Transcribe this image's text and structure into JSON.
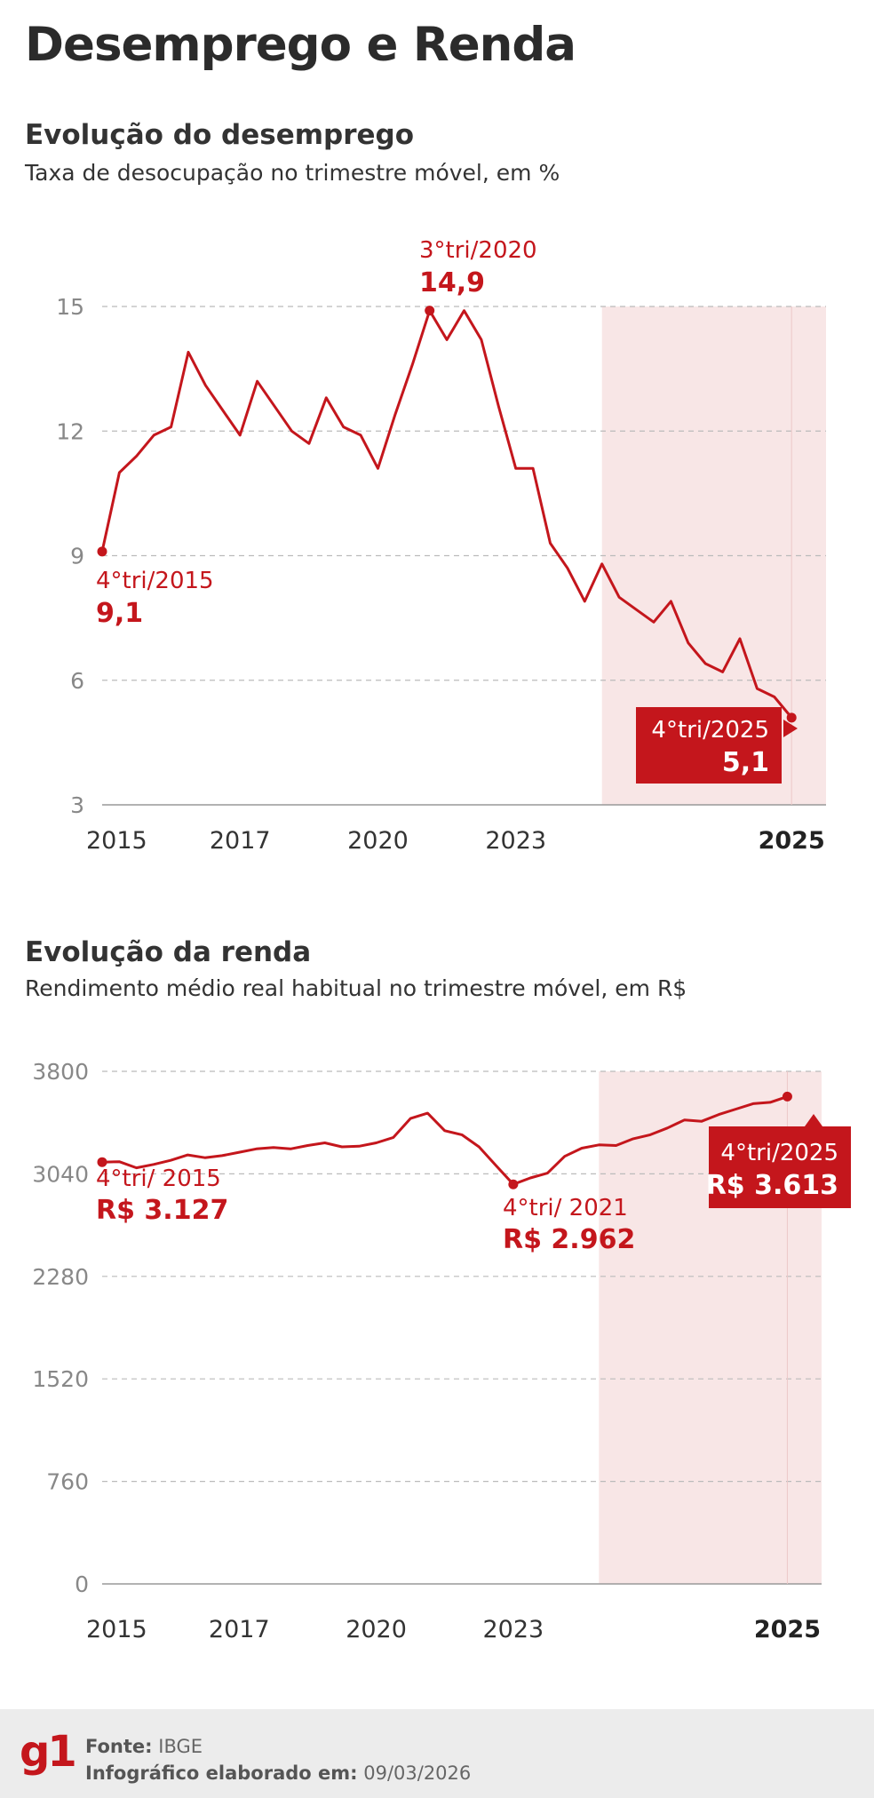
{
  "title": "Desemprego e Renda",
  "colors": {
    "accent": "#c4161c",
    "highlight": "#f8e6e6",
    "grid": "#bbbbbb",
    "axis": "#999999"
  },
  "chart_data": [
    {
      "type": "line",
      "title": "Evolução do desemprego",
      "subtitle": "Taxa de desocupação no trimestre móvel, em %",
      "xlabel": "",
      "ylabel": "",
      "x_ticks": [
        {
          "label": "2015",
          "value": 2015.0,
          "bold": false
        },
        {
          "label": "2017",
          "value": 2017.0,
          "bold": false
        },
        {
          "label": "2020",
          "value": 2019.0,
          "bold": false
        },
        {
          "label": "2023",
          "value": 2021.0,
          "bold": false
        },
        {
          "label": "2025",
          "value": 2025.0,
          "bold": true
        }
      ],
      "xlim": [
        2015.0,
        2025.5
      ],
      "ylim": [
        3,
        15
      ],
      "y_ticks": [
        3,
        6,
        9,
        12,
        15
      ],
      "grid": true,
      "highlight_range": [
        2022.25,
        2025.5
      ],
      "series": [
        {
          "name": "Taxa de desocupação",
          "x": [
            2015.0,
            2015.25,
            2015.5,
            2015.75,
            2016.0,
            2016.25,
            2016.5,
            2016.75,
            2017.0,
            2017.25,
            2017.5,
            2017.75,
            2018.0,
            2018.25,
            2018.5,
            2018.75,
            2019.0,
            2019.25,
            2019.5,
            2019.75,
            2020.0,
            2020.25,
            2020.5,
            2020.75,
            2021.0,
            2021.25,
            2021.5,
            2021.75,
            2022.0,
            2022.25,
            2022.5,
            2022.75,
            2023.0,
            2023.25,
            2023.5,
            2023.75,
            2024.0,
            2024.25,
            2024.5,
            2024.75,
            2025.0
          ],
          "values": [
            9.1,
            11.0,
            11.4,
            11.9,
            12.1,
            13.9,
            13.1,
            12.5,
            11.9,
            13.2,
            12.6,
            12.0,
            11.7,
            12.8,
            12.1,
            11.9,
            11.1,
            12.4,
            13.6,
            14.9,
            14.2,
            14.9,
            14.2,
            12.6,
            11.1,
            11.1,
            9.3,
            8.7,
            7.9,
            8.8,
            8.0,
            7.7,
            7.4,
            7.9,
            6.9,
            6.4,
            6.2,
            7.0,
            5.8,
            5.6,
            5.1
          ]
        }
      ],
      "annotations": [
        {
          "label": "4°tri/2015",
          "value_label": "9,1",
          "x": 2015.0,
          "y": 9.1,
          "style": "text"
        },
        {
          "label": "3°tri/2020",
          "value_label": "14,9",
          "x": 2019.75,
          "y": 14.9,
          "style": "text"
        },
        {
          "label": "4°tri/2025",
          "value_label": "5,1",
          "x": 2025.0,
          "y": 5.1,
          "style": "box"
        }
      ]
    },
    {
      "type": "line",
      "title": "Evolução da renda",
      "subtitle": "Rendimento médio real habitual no trimestre móvel, em R$",
      "xlabel": "",
      "ylabel": "",
      "x_ticks": [
        {
          "label": "2015",
          "value": 2015.0,
          "bold": false
        },
        {
          "label": "2017",
          "value": 2017.0,
          "bold": false
        },
        {
          "label": "2020",
          "value": 2019.0,
          "bold": false
        },
        {
          "label": "2023",
          "value": 2021.0,
          "bold": false
        },
        {
          "label": "2025",
          "value": 2025.0,
          "bold": true
        }
      ],
      "xlim": [
        2015.0,
        2025.5
      ],
      "ylim": [
        0,
        3800
      ],
      "y_ticks": [
        0,
        760,
        1520,
        2280,
        3040,
        3800
      ],
      "grid": true,
      "highlight_range": [
        2022.25,
        2025.5
      ],
      "series": [
        {
          "name": "Rendimento médio real",
          "x": [
            2015.0,
            2015.25,
            2015.5,
            2015.75,
            2016.0,
            2016.25,
            2016.5,
            2016.75,
            2017.0,
            2017.25,
            2017.5,
            2017.75,
            2018.0,
            2018.25,
            2018.5,
            2018.75,
            2019.0,
            2019.25,
            2019.5,
            2019.75,
            2020.0,
            2020.25,
            2020.5,
            2020.75,
            2021.0,
            2021.25,
            2021.5,
            2021.75,
            2022.0,
            2022.25,
            2022.5,
            2022.75,
            2023.0,
            2023.25,
            2023.5,
            2023.75,
            2024.0,
            2024.25,
            2024.5,
            2024.75,
            2025.0
          ],
          "values": [
            3127,
            3130,
            3085,
            3110,
            3140,
            3180,
            3160,
            3175,
            3200,
            3225,
            3235,
            3225,
            3250,
            3270,
            3240,
            3245,
            3270,
            3310,
            3450,
            3490,
            3360,
            3330,
            3240,
            3100,
            2962,
            3010,
            3045,
            3170,
            3230,
            3255,
            3250,
            3300,
            3330,
            3380,
            3440,
            3430,
            3480,
            3520,
            3560,
            3570,
            3613
          ]
        }
      ],
      "annotations": [
        {
          "label": "4°tri/ 2015",
          "value_label": "R$ 3.127",
          "x": 2015.0,
          "y": 3127,
          "style": "text"
        },
        {
          "label": "4°tri/ 2021",
          "value_label": "R$ 2.962",
          "x": 2021.0,
          "y": 2962,
          "style": "text"
        },
        {
          "label": "4°tri/2025",
          "value_label": "R$ 3.613",
          "x": 2025.0,
          "y": 3613,
          "style": "box"
        }
      ]
    }
  ],
  "footer": {
    "logo": "g1",
    "source_label": "Fonte:",
    "source_value": "IBGE",
    "date_label": "Infográfico elaborado em:",
    "date_value": "09/03/2026"
  }
}
